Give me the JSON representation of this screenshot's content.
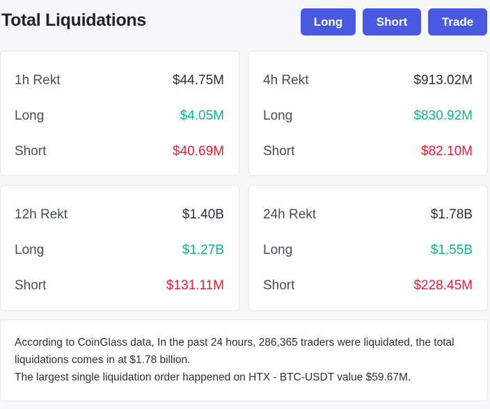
{
  "header": {
    "title": "Total Liquidations",
    "buttons": {
      "long": "Long",
      "short": "Short",
      "trade": "Trade"
    },
    "button_color": "#4a5ae0"
  },
  "colors": {
    "long": "#0bb58f",
    "short": "#f0192f"
  },
  "cards": [
    {
      "label": "1h Rekt",
      "total": "$44.75M",
      "long_label": "Long",
      "long": "$4.05M",
      "short_label": "Short",
      "short": "$40.69M"
    },
    {
      "label": "4h Rekt",
      "total": "$913.02M",
      "long_label": "Long",
      "long": "$830.92M",
      "short_label": "Short",
      "short": "$82.10M"
    },
    {
      "label": "12h Rekt",
      "total": "$1.40B",
      "long_label": "Long",
      "long": "$1.27B",
      "short_label": "Short",
      "short": "$131.11M"
    },
    {
      "label": "24h Rekt",
      "total": "$1.78B",
      "long_label": "Long",
      "long": "$1.55B",
      "short_label": "Short",
      "short": "$228.45M"
    }
  ],
  "summary": {
    "line1": "According to CoinGlass data, In the past 24 hours, 286,365 traders were liquidated, the total liquidations comes in at $1.78 billion.",
    "line2": "The largest single liquidation order happened on HTX - BTC-USDT value $59.67M."
  }
}
